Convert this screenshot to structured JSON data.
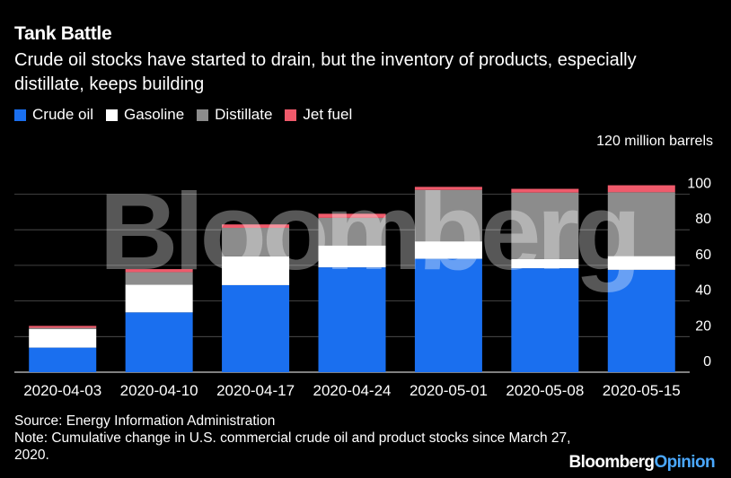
{
  "title": "Tank Battle",
  "subtitle": "Crude oil stocks have started to drain, but the inventory of products, especially distillate, keeps building",
  "watermark": "Bloomberg",
  "legend": [
    {
      "label": "Crude oil",
      "color": "#1a6fef"
    },
    {
      "label": "Gasoline",
      "color": "#ffffff"
    },
    {
      "label": "Distillate",
      "color": "#8c8c8c"
    },
    {
      "label": "Jet fuel",
      "color": "#ef5a6b"
    }
  ],
  "y_unit_label": "120 million barrels",
  "source": "Source: Energy Information Administration",
  "note": "Note: Cumulative change in U.S. commercial crude oil and product stocks since March 27, 2020.",
  "brand": {
    "part1": "Bloomberg",
    "part2": "Opinion"
  },
  "chart_data": {
    "type": "bar",
    "stacked": true,
    "categories": [
      "2020-04-03",
      "2020-04-10",
      "2020-04-17",
      "2020-04-24",
      "2020-05-01",
      "2020-05-08",
      "2020-05-15"
    ],
    "series": [
      {
        "name": "Crude oil",
        "color": "#1a6fef",
        "values": [
          13.8,
          33.6,
          48.9,
          58.9,
          63.7,
          58.4,
          57.5
        ]
      },
      {
        "name": "Gasoline",
        "color": "#ffffff",
        "values": [
          10.5,
          15.6,
          16.2,
          12.3,
          9.8,
          5.2,
          7.7
        ]
      },
      {
        "name": "Distillate",
        "color": "#8c8c8c",
        "values": [
          0.6,
          7.0,
          16.0,
          15.5,
          28.9,
          37.3,
          35.9
        ]
      },
      {
        "name": "Jet fuel",
        "color": "#ef5a6b",
        "values": [
          1.1,
          1.7,
          1.9,
          2.3,
          1.7,
          2.1,
          3.9
        ]
      }
    ],
    "yticks": [
      0,
      20,
      40,
      60,
      80,
      100
    ],
    "ylim": [
      0,
      110
    ],
    "ylabel": "120 million barrels",
    "grid": true,
    "legend_position": "top-left"
  }
}
